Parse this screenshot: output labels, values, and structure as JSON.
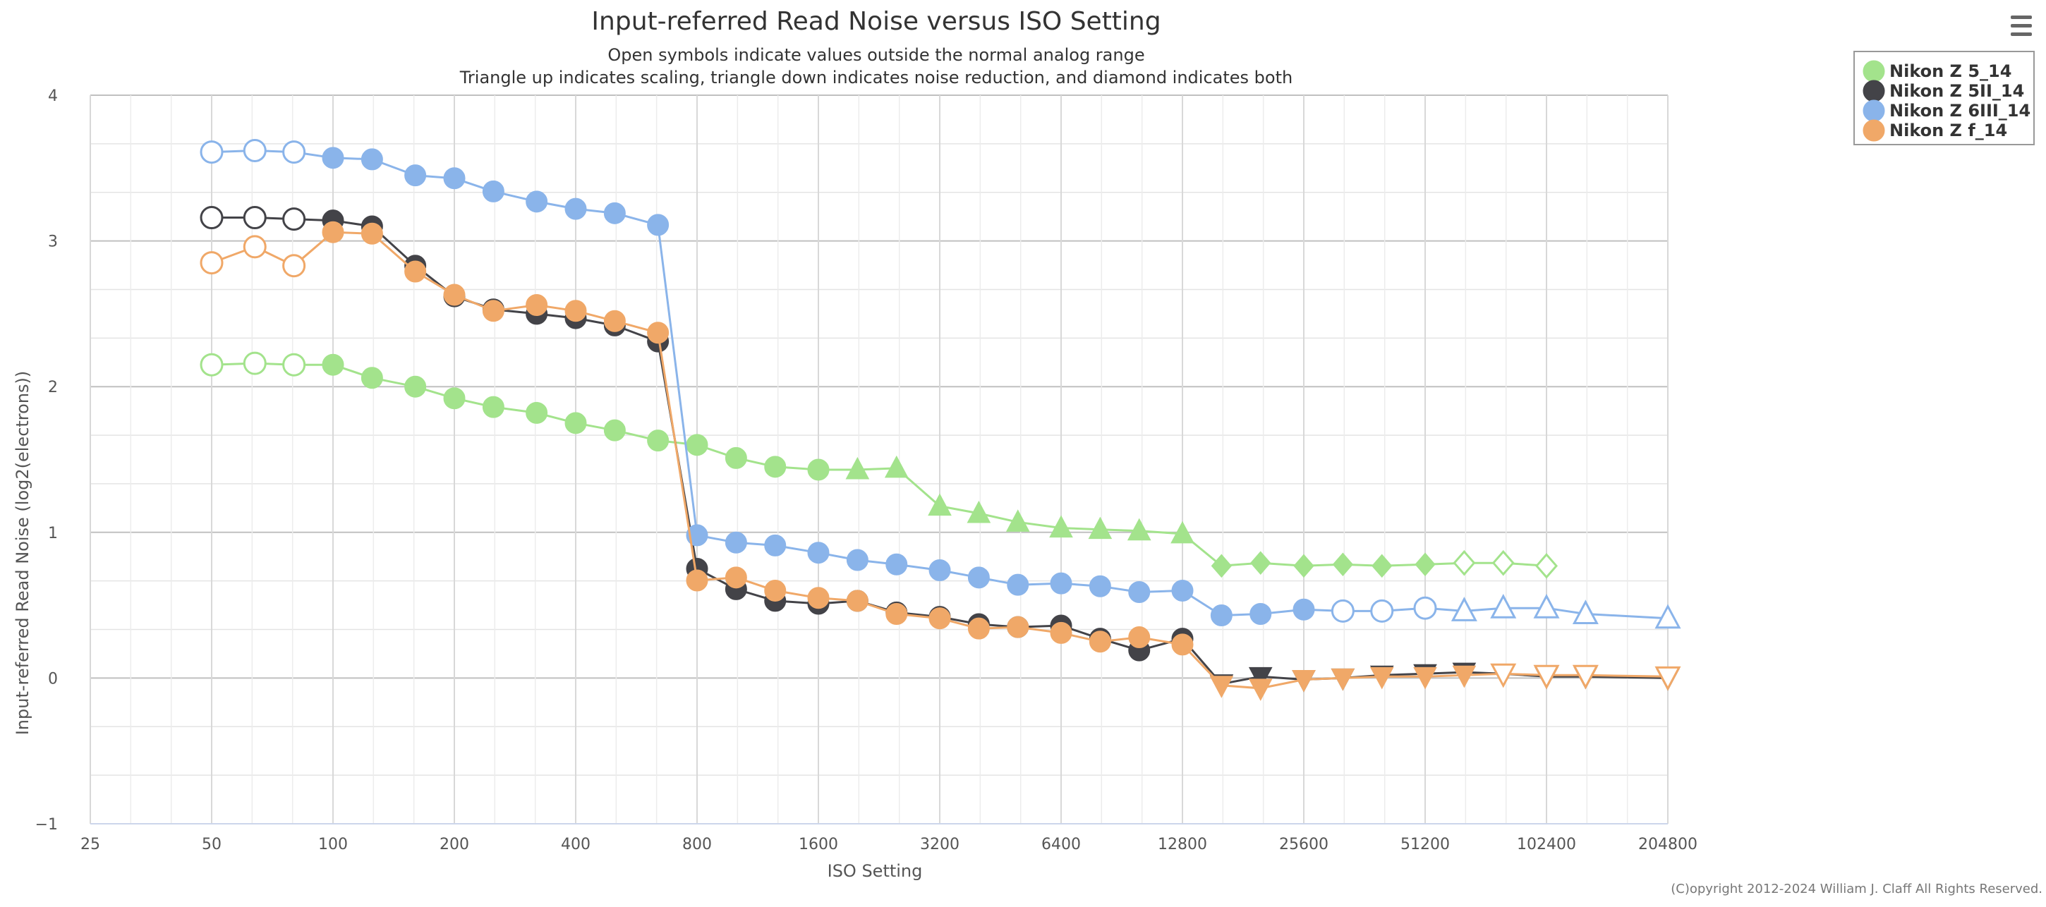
{
  "chart_data": {
    "type": "line",
    "title": "Input-referred Read Noise versus ISO Setting",
    "subtitle": [
      "Open symbols indicate values outside the normal analog range",
      "Triangle up indicates scaling, triangle down indicates noise reduction, and diamond indicates both"
    ],
    "xlabel": "ISO Setting",
    "ylabel": "Input-referred Read Noise (log2(electrons))",
    "x_scale": "log2",
    "xlim": [
      25,
      204800
    ],
    "ylim": [
      -1,
      4
    ],
    "x_ticks": [
      25,
      50,
      100,
      200,
      400,
      800,
      1600,
      3200,
      6400,
      12800,
      25600,
      51200,
      102400,
      204800
    ],
    "y_ticks": [
      -1,
      0,
      1,
      2,
      3,
      4
    ],
    "grid": true,
    "legend_position": "top-right",
    "credits": "(C)opyright 2012-2024 William J. Claff All Rights Reserved.",
    "series": [
      {
        "name": "Nikon Z 5_14",
        "color": "#a3e38c",
        "points": [
          {
            "x": 50,
            "y": 2.15,
            "m": "circle",
            "open": true
          },
          {
            "x": 64,
            "y": 2.16,
            "m": "circle",
            "open": true
          },
          {
            "x": 80,
            "y": 2.15,
            "m": "circle",
            "open": true
          },
          {
            "x": 100,
            "y": 2.15,
            "m": "circle"
          },
          {
            "x": 125,
            "y": 2.06,
            "m": "circle"
          },
          {
            "x": 160,
            "y": 2.0,
            "m": "circle"
          },
          {
            "x": 200,
            "y": 1.92,
            "m": "circle"
          },
          {
            "x": 250,
            "y": 1.86,
            "m": "circle"
          },
          {
            "x": 320,
            "y": 1.82,
            "m": "circle"
          },
          {
            "x": 400,
            "y": 1.75,
            "m": "circle"
          },
          {
            "x": 500,
            "y": 1.7,
            "m": "circle"
          },
          {
            "x": 640,
            "y": 1.63,
            "m": "circle"
          },
          {
            "x": 800,
            "y": 1.6,
            "m": "circle"
          },
          {
            "x": 1000,
            "y": 1.51,
            "m": "circle"
          },
          {
            "x": 1250,
            "y": 1.45,
            "m": "circle"
          },
          {
            "x": 1600,
            "y": 1.43,
            "m": "circle"
          },
          {
            "x": 2000,
            "y": 1.43,
            "m": "tri-up"
          },
          {
            "x": 2500,
            "y": 1.44,
            "m": "tri-up"
          },
          {
            "x": 3200,
            "y": 1.18,
            "m": "tri-up"
          },
          {
            "x": 4000,
            "y": 1.13,
            "m": "tri-up"
          },
          {
            "x": 5000,
            "y": 1.07,
            "m": "tri-up"
          },
          {
            "x": 6400,
            "y": 1.03,
            "m": "tri-up"
          },
          {
            "x": 8000,
            "y": 1.02,
            "m": "tri-up"
          },
          {
            "x": 10000,
            "y": 1.01,
            "m": "tri-up"
          },
          {
            "x": 12800,
            "y": 0.99,
            "m": "tri-up"
          },
          {
            "x": 16000,
            "y": 0.77,
            "m": "diamond"
          },
          {
            "x": 20000,
            "y": 0.79,
            "m": "diamond"
          },
          {
            "x": 25600,
            "y": 0.77,
            "m": "diamond"
          },
          {
            "x": 32000,
            "y": 0.78,
            "m": "diamond"
          },
          {
            "x": 40000,
            "y": 0.77,
            "m": "diamond"
          },
          {
            "x": 51200,
            "y": 0.78,
            "m": "diamond"
          },
          {
            "x": 64000,
            "y": 0.79,
            "m": "diamond",
            "open": true
          },
          {
            "x": 80000,
            "y": 0.79,
            "m": "diamond",
            "open": true
          },
          {
            "x": 102400,
            "y": 0.77,
            "m": "diamond",
            "open": true
          }
        ]
      },
      {
        "name": "Nikon Z 5II_14",
        "color": "#434348",
        "points": [
          {
            "x": 50,
            "y": 3.16,
            "m": "circle",
            "open": true
          },
          {
            "x": 64,
            "y": 3.16,
            "m": "circle",
            "open": true
          },
          {
            "x": 80,
            "y": 3.15,
            "m": "circle",
            "open": true
          },
          {
            "x": 100,
            "y": 3.14,
            "m": "circle"
          },
          {
            "x": 125,
            "y": 3.1,
            "m": "circle"
          },
          {
            "x": 160,
            "y": 2.83,
            "m": "circle"
          },
          {
            "x": 200,
            "y": 2.62,
            "m": "circle"
          },
          {
            "x": 250,
            "y": 2.53,
            "m": "circle"
          },
          {
            "x": 320,
            "y": 2.5,
            "m": "circle"
          },
          {
            "x": 400,
            "y": 2.47,
            "m": "circle"
          },
          {
            "x": 500,
            "y": 2.42,
            "m": "circle"
          },
          {
            "x": 640,
            "y": 2.31,
            "m": "circle"
          },
          {
            "x": 800,
            "y": 0.75,
            "m": "circle"
          },
          {
            "x": 1000,
            "y": 0.61,
            "m": "circle"
          },
          {
            "x": 1250,
            "y": 0.53,
            "m": "circle"
          },
          {
            "x": 1600,
            "y": 0.51,
            "m": "circle"
          },
          {
            "x": 2000,
            "y": 0.53,
            "m": "circle"
          },
          {
            "x": 2500,
            "y": 0.45,
            "m": "circle"
          },
          {
            "x": 3200,
            "y": 0.42,
            "m": "circle"
          },
          {
            "x": 4000,
            "y": 0.37,
            "m": "circle"
          },
          {
            "x": 5000,
            "y": 0.35,
            "m": "circle"
          },
          {
            "x": 6400,
            "y": 0.36,
            "m": "circle"
          },
          {
            "x": 8000,
            "y": 0.27,
            "m": "circle"
          },
          {
            "x": 10000,
            "y": 0.19,
            "m": "circle"
          },
          {
            "x": 12800,
            "y": 0.27,
            "m": "circle"
          },
          {
            "x": 16000,
            "y": -0.04,
            "m": "tri-down"
          },
          {
            "x": 20000,
            "y": 0.01,
            "m": "tri-down"
          },
          {
            "x": 25600,
            "y": -0.01,
            "m": "tri-down"
          },
          {
            "x": 32000,
            "y": 0.0,
            "m": "tri-down"
          },
          {
            "x": 40000,
            "y": 0.02,
            "m": "tri-down"
          },
          {
            "x": 51200,
            "y": 0.03,
            "m": "tri-down"
          },
          {
            "x": 64000,
            "y": 0.04,
            "m": "tri-down"
          },
          {
            "x": 80000,
            "y": 0.03,
            "m": "tri-down"
          },
          {
            "x": 102400,
            "y": 0.01,
            "m": "tri-down"
          },
          {
            "x": 128000,
            "y": 0.01,
            "m": "tri-down"
          },
          {
            "x": 204800,
            "y": 0.0,
            "m": "tri-down"
          }
        ]
      },
      {
        "name": "Nikon Z 6III_14",
        "color": "#8ab4ea",
        "points": [
          {
            "x": 50,
            "y": 3.61,
            "m": "circle",
            "open": true
          },
          {
            "x": 64,
            "y": 3.62,
            "m": "circle",
            "open": true
          },
          {
            "x": 80,
            "y": 3.61,
            "m": "circle",
            "open": true
          },
          {
            "x": 100,
            "y": 3.57,
            "m": "circle"
          },
          {
            "x": 125,
            "y": 3.56,
            "m": "circle"
          },
          {
            "x": 160,
            "y": 3.45,
            "m": "circle"
          },
          {
            "x": 200,
            "y": 3.43,
            "m": "circle"
          },
          {
            "x": 250,
            "y": 3.34,
            "m": "circle"
          },
          {
            "x": 320,
            "y": 3.27,
            "m": "circle"
          },
          {
            "x": 400,
            "y": 3.22,
            "m": "circle"
          },
          {
            "x": 500,
            "y": 3.19,
            "m": "circle"
          },
          {
            "x": 640,
            "y": 3.11,
            "m": "circle"
          },
          {
            "x": 800,
            "y": 0.98,
            "m": "circle"
          },
          {
            "x": 1000,
            "y": 0.93,
            "m": "circle"
          },
          {
            "x": 1250,
            "y": 0.91,
            "m": "circle"
          },
          {
            "x": 1600,
            "y": 0.86,
            "m": "circle"
          },
          {
            "x": 2000,
            "y": 0.81,
            "m": "circle"
          },
          {
            "x": 2500,
            "y": 0.78,
            "m": "circle"
          },
          {
            "x": 3200,
            "y": 0.74,
            "m": "circle"
          },
          {
            "x": 4000,
            "y": 0.69,
            "m": "circle"
          },
          {
            "x": 5000,
            "y": 0.64,
            "m": "circle"
          },
          {
            "x": 6400,
            "y": 0.65,
            "m": "circle"
          },
          {
            "x": 8000,
            "y": 0.63,
            "m": "circle"
          },
          {
            "x": 10000,
            "y": 0.59,
            "m": "circle"
          },
          {
            "x": 12800,
            "y": 0.6,
            "m": "circle"
          },
          {
            "x": 16000,
            "y": 0.43,
            "m": "circle"
          },
          {
            "x": 20000,
            "y": 0.44,
            "m": "circle"
          },
          {
            "x": 25600,
            "y": 0.47,
            "m": "circle"
          },
          {
            "x": 32000,
            "y": 0.46,
            "m": "circle",
            "open": true
          },
          {
            "x": 40000,
            "y": 0.46,
            "m": "circle",
            "open": true
          },
          {
            "x": 51200,
            "y": 0.48,
            "m": "circle",
            "open": true
          },
          {
            "x": 64000,
            "y": 0.46,
            "m": "tri-up",
            "open": true
          },
          {
            "x": 80000,
            "y": 0.48,
            "m": "tri-up",
            "open": true
          },
          {
            "x": 102400,
            "y": 0.48,
            "m": "tri-up",
            "open": true
          },
          {
            "x": 128000,
            "y": 0.44,
            "m": "tri-up",
            "open": true
          },
          {
            "x": 204800,
            "y": 0.41,
            "m": "tri-up",
            "open": true
          }
        ]
      },
      {
        "name": "Nikon Z f_14",
        "color": "#f0a868",
        "points": [
          {
            "x": 50,
            "y": 2.85,
            "m": "circle",
            "open": true
          },
          {
            "x": 64,
            "y": 2.96,
            "m": "circle",
            "open": true
          },
          {
            "x": 80,
            "y": 2.83,
            "m": "circle",
            "open": true
          },
          {
            "x": 100,
            "y": 3.06,
            "m": "circle"
          },
          {
            "x": 125,
            "y": 3.05,
            "m": "circle"
          },
          {
            "x": 160,
            "y": 2.79,
            "m": "circle"
          },
          {
            "x": 200,
            "y": 2.63,
            "m": "circle"
          },
          {
            "x": 250,
            "y": 2.52,
            "m": "circle"
          },
          {
            "x": 320,
            "y": 2.56,
            "m": "circle"
          },
          {
            "x": 400,
            "y": 2.52,
            "m": "circle"
          },
          {
            "x": 500,
            "y": 2.45,
            "m": "circle"
          },
          {
            "x": 640,
            "y": 2.37,
            "m": "circle"
          },
          {
            "x": 800,
            "y": 0.67,
            "m": "circle"
          },
          {
            "x": 1000,
            "y": 0.69,
            "m": "circle"
          },
          {
            "x": 1250,
            "y": 0.6,
            "m": "circle"
          },
          {
            "x": 1600,
            "y": 0.55,
            "m": "circle"
          },
          {
            "x": 2000,
            "y": 0.53,
            "m": "circle"
          },
          {
            "x": 2500,
            "y": 0.44,
            "m": "circle"
          },
          {
            "x": 3200,
            "y": 0.41,
            "m": "circle"
          },
          {
            "x": 4000,
            "y": 0.34,
            "m": "circle"
          },
          {
            "x": 5000,
            "y": 0.35,
            "m": "circle"
          },
          {
            "x": 6400,
            "y": 0.31,
            "m": "circle"
          },
          {
            "x": 8000,
            "y": 0.25,
            "m": "circle"
          },
          {
            "x": 10000,
            "y": 0.28,
            "m": "circle"
          },
          {
            "x": 12800,
            "y": 0.23,
            "m": "circle"
          },
          {
            "x": 16000,
            "y": -0.05,
            "m": "tri-down"
          },
          {
            "x": 20000,
            "y": -0.07,
            "m": "tri-down"
          },
          {
            "x": 25600,
            "y": -0.01,
            "m": "tri-down"
          },
          {
            "x": 32000,
            "y": 0.0,
            "m": "tri-down"
          },
          {
            "x": 40000,
            "y": 0.01,
            "m": "tri-down"
          },
          {
            "x": 51200,
            "y": 0.01,
            "m": "tri-down"
          },
          {
            "x": 64000,
            "y": 0.02,
            "m": "tri-down"
          },
          {
            "x": 80000,
            "y": 0.03,
            "m": "tri-down",
            "open": true
          },
          {
            "x": 102400,
            "y": 0.02,
            "m": "tri-down",
            "open": true
          },
          {
            "x": 128000,
            "y": 0.02,
            "m": "tri-down",
            "open": true
          },
          {
            "x": 204800,
            "y": 0.01,
            "m": "tri-down",
            "open": true
          }
        ]
      }
    ]
  },
  "menu": {
    "icon": "hamburger-menu-icon"
  }
}
